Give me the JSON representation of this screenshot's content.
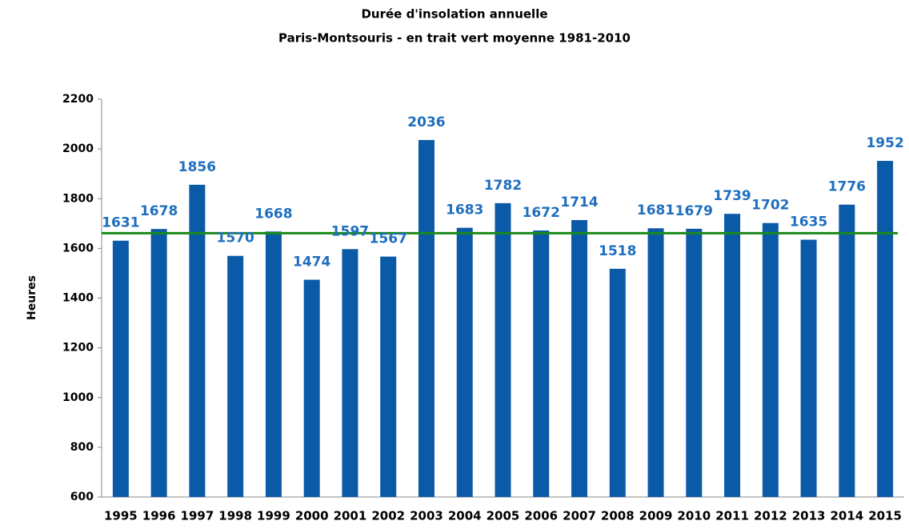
{
  "chart_data": {
    "type": "bar",
    "title": "Durée d'insolation annuelle",
    "subtitle": "Paris-Montsouris - en trait vert moyenne 1981-2010",
    "y_label": "Heures",
    "categories": [
      "1995",
      "1996",
      "1997",
      "1998",
      "1999",
      "2000",
      "2001",
      "2002",
      "2003",
      "2004",
      "2005",
      "2006",
      "2007",
      "2008",
      "2009",
      "2010",
      "2011",
      "2012",
      "2013",
      "2014",
      "2015"
    ],
    "values": [
      1631,
      1678,
      1856,
      1570,
      1668,
      1474,
      1597,
      1567,
      2036,
      1683,
      1782,
      1672,
      1714,
      1518,
      1681,
      1679,
      1739,
      1702,
      1635,
      1776,
      1952
    ],
    "color": "#0b5aa8",
    "label_color": "#1f6fbf",
    "mean_line": {
      "value": 1661,
      "color": "#1a8a1a"
    },
    "ylim": [
      600,
      2200
    ],
    "yticks": [
      600,
      800,
      1000,
      1200,
      1400,
      1600,
      1800,
      2000,
      2200
    ],
    "grid": false
  }
}
